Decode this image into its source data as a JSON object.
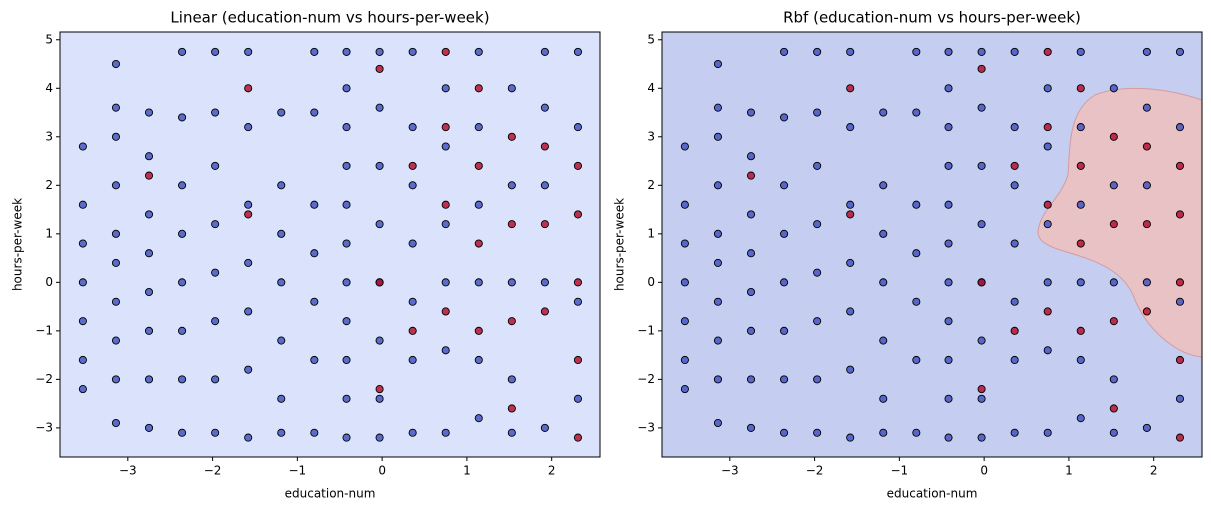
{
  "chart_data": [
    {
      "type": "scatter",
      "title": "Linear (education-num vs hours-per-week)",
      "x_label": "education-num",
      "y_label": "hours-per-week",
      "background": "#dae3fb",
      "xlim": [
        -3.8,
        2.57
      ],
      "ylim": [
        -3.6,
        5.16
      ],
      "xticks": [
        {
          "value": -3,
          "label": "−3"
        },
        {
          "value": -2,
          "label": "−2"
        },
        {
          "value": -1,
          "label": "−1"
        },
        0,
        1,
        2
      ],
      "yticks": [
        {
          "value": -3,
          "label": "−3"
        },
        {
          "value": -2,
          "label": "−2"
        },
        {
          "value": -1,
          "label": "−1"
        },
        0,
        1,
        2,
        3,
        4,
        5
      ],
      "series": [
        {
          "color": "#3b4cc0",
          "x": [
            -3.53,
            -3.53,
            -3.53,
            -3.53,
            -3.53,
            -3.53,
            -3.53,
            -3.14,
            -3.14,
            -3.14,
            -3.14,
            -3.14,
            -3.14,
            -3.14,
            -3.14,
            -3.14,
            -3.14,
            -2.75,
            -2.75,
            -2.75,
            -2.75,
            -2.75,
            -2.75,
            -2.75,
            -2.75,
            -2.36,
            -2.36,
            -2.36,
            -2.36,
            -2.36,
            -2.36,
            -2.36,
            -2.36,
            -1.97,
            -1.97,
            -1.97,
            -1.97,
            -1.97,
            -1.97,
            -1.97,
            -1.97,
            -1.58,
            -1.58,
            -1.58,
            -1.58,
            -1.58,
            -1.58,
            -1.58,
            -1.19,
            -1.19,
            -1.19,
            -1.19,
            -1.19,
            -1.19,
            -1.19,
            -0.8,
            -0.8,
            -0.8,
            -0.8,
            -0.8,
            -0.8,
            -0.8,
            -0.42,
            -0.42,
            -0.42,
            -0.42,
            -0.42,
            -0.42,
            -0.42,
            -0.42,
            -0.42,
            -0.42,
            -0.42,
            -0.03,
            -0.03,
            -0.03,
            -0.03,
            -0.03,
            -0.03,
            -0.03,
            -0.03,
            0.36,
            0.36,
            0.36,
            0.36,
            0.36,
            0.36,
            0.36,
            0.75,
            0.75,
            0.75,
            0.75,
            0.75,
            0.75,
            1.14,
            1.14,
            1.14,
            1.14,
            1.14,
            1.14,
            1.53,
            1.53,
            1.53,
            1.53,
            1.53,
            1.92,
            1.92,
            1.92,
            1.92,
            1.92,
            2.31,
            2.31,
            2.31,
            2.31
          ],
          "y": [
            2.8,
            1.6,
            0.8,
            0,
            -0.8,
            -1.6,
            -2.2,
            4.5,
            3.6,
            3.0,
            2.0,
            1.0,
            0.4,
            -0.4,
            -1.2,
            -2.0,
            -2.9,
            3.5,
            2.6,
            1.4,
            0.6,
            -0.2,
            -1.0,
            -2.0,
            -3.0,
            4.75,
            3.4,
            2.0,
            1.0,
            0.0,
            -1.0,
            -2.0,
            -3.1,
            4.75,
            3.5,
            2.4,
            1.2,
            0.2,
            -0.8,
            -2.0,
            -3.1,
            4.75,
            3.2,
            1.6,
            0.4,
            -0.6,
            -1.8,
            -3.2,
            3.5,
            2.0,
            1.0,
            0.0,
            -1.2,
            -2.4,
            -3.1,
            4.75,
            3.5,
            1.6,
            0.6,
            -0.4,
            -1.6,
            -3.1,
            4.75,
            4.0,
            3.2,
            2.4,
            1.6,
            0.8,
            0,
            -0.8,
            -1.6,
            -2.4,
            -3.2,
            4.75,
            3.6,
            2.4,
            1.2,
            0,
            -1.2,
            -2.4,
            -3.2,
            4.75,
            3.2,
            2.0,
            0.8,
            -0.4,
            -1.6,
            -3.1,
            4.0,
            2.8,
            1.2,
            0,
            -1.4,
            -3.1,
            4.75,
            3.2,
            1.6,
            0,
            -1.6,
            -2.8,
            4.0,
            2.0,
            0.0,
            -2.0,
            -3.1,
            4.75,
            3.6,
            2.0,
            0,
            -3.0,
            4.75,
            3.2,
            -0.4,
            -2.4
          ]
        },
        {
          "color": "#b40426",
          "x": [
            0.75,
            0.75,
            0.75,
            0.75,
            1.14,
            1.14,
            1.14,
            1.14,
            1.53,
            1.53,
            1.53,
            1.53,
            1.92,
            1.92,
            1.92,
            2.31,
            2.31,
            2.31,
            2.31,
            2.31,
            -0.03,
            -0.03,
            -0.03,
            -1.58,
            -1.58,
            -2.75,
            0.36,
            0.36
          ],
          "y": [
            4.75,
            3.2,
            1.6,
            -0.6,
            4.0,
            2.4,
            0.8,
            -1.0,
            3.0,
            1.2,
            -0.8,
            -2.6,
            2.8,
            1.2,
            -0.6,
            2.4,
            1.4,
            0,
            -1.6,
            -3.2,
            4.4,
            0,
            -2.2,
            4.0,
            1.4,
            2.2,
            2.4,
            -1.0
          ]
        }
      ]
    },
    {
      "type": "scatter",
      "title": "Rbf (education-num vs hours-per-week)",
      "x_label": "education-num",
      "y_label": "hours-per-week",
      "background": "#c5cef0",
      "xlim": [
        -3.8,
        2.57
      ],
      "ylim": [
        -3.6,
        5.16
      ],
      "xticks": [
        {
          "value": -3,
          "label": "−3"
        },
        {
          "value": -2,
          "label": "−2"
        },
        {
          "value": -1,
          "label": "−1"
        },
        0,
        1,
        2
      ],
      "yticks": [
        {
          "value": -3,
          "label": "−3"
        },
        {
          "value": -2,
          "label": "−2"
        },
        {
          "value": -1,
          "label": "−1"
        },
        0,
        1,
        2,
        3,
        4,
        5
      ],
      "series": [
        {
          "color": "#3b4cc0",
          "x": [
            -3.53,
            -3.53,
            -3.53,
            -3.53,
            -3.53,
            -3.53,
            -3.53,
            -3.14,
            -3.14,
            -3.14,
            -3.14,
            -3.14,
            -3.14,
            -3.14,
            -3.14,
            -3.14,
            -3.14,
            -2.75,
            -2.75,
            -2.75,
            -2.75,
            -2.75,
            -2.75,
            -2.75,
            -2.75,
            -2.36,
            -2.36,
            -2.36,
            -2.36,
            -2.36,
            -2.36,
            -2.36,
            -2.36,
            -1.97,
            -1.97,
            -1.97,
            -1.97,
            -1.97,
            -1.97,
            -1.97,
            -1.97,
            -1.58,
            -1.58,
            -1.58,
            -1.58,
            -1.58,
            -1.58,
            -1.58,
            -1.19,
            -1.19,
            -1.19,
            -1.19,
            -1.19,
            -1.19,
            -1.19,
            -0.8,
            -0.8,
            -0.8,
            -0.8,
            -0.8,
            -0.8,
            -0.8,
            -0.42,
            -0.42,
            -0.42,
            -0.42,
            -0.42,
            -0.42,
            -0.42,
            -0.42,
            -0.42,
            -0.42,
            -0.42,
            -0.03,
            -0.03,
            -0.03,
            -0.03,
            -0.03,
            -0.03,
            -0.03,
            -0.03,
            0.36,
            0.36,
            0.36,
            0.36,
            0.36,
            0.36,
            0.36,
            0.75,
            0.75,
            0.75,
            0.75,
            0.75,
            0.75,
            1.14,
            1.14,
            1.14,
            1.14,
            1.14,
            1.14,
            1.53,
            1.53,
            1.53,
            1.53,
            1.53,
            1.92,
            1.92,
            1.92,
            1.92,
            1.92,
            2.31,
            2.31,
            2.31,
            2.31
          ],
          "y": [
            2.8,
            1.6,
            0.8,
            0,
            -0.8,
            -1.6,
            -2.2,
            4.5,
            3.6,
            3.0,
            2.0,
            1.0,
            0.4,
            -0.4,
            -1.2,
            -2.0,
            -2.9,
            3.5,
            2.6,
            1.4,
            0.6,
            -0.2,
            -1.0,
            -2.0,
            -3.0,
            4.75,
            3.4,
            2.0,
            1.0,
            0.0,
            -1.0,
            -2.0,
            -3.1,
            4.75,
            3.5,
            2.4,
            1.2,
            0.2,
            -0.8,
            -2.0,
            -3.1,
            4.75,
            3.2,
            1.6,
            0.4,
            -0.6,
            -1.8,
            -3.2,
            3.5,
            2.0,
            1.0,
            0.0,
            -1.2,
            -2.4,
            -3.1,
            4.75,
            3.5,
            1.6,
            0.6,
            -0.4,
            -1.6,
            -3.1,
            4.75,
            4.0,
            3.2,
            2.4,
            1.6,
            0.8,
            0,
            -0.8,
            -1.6,
            -2.4,
            -3.2,
            4.75,
            3.6,
            2.4,
            1.2,
            0,
            -1.2,
            -2.4,
            -3.2,
            4.75,
            3.2,
            2.0,
            0.8,
            -0.4,
            -1.6,
            -3.1,
            4.0,
            2.8,
            1.2,
            0,
            -1.4,
            -3.1,
            4.75,
            3.2,
            1.6,
            0,
            -1.6,
            -2.8,
            4.0,
            2.0,
            0.0,
            -2.0,
            -3.1,
            4.75,
            3.6,
            2.0,
            0,
            -3.0,
            4.75,
            3.2,
            -0.4,
            -2.4
          ]
        },
        {
          "color": "#b40426",
          "x": [
            0.75,
            0.75,
            0.75,
            0.75,
            1.14,
            1.14,
            1.14,
            1.14,
            1.53,
            1.53,
            1.53,
            1.53,
            1.92,
            1.92,
            1.92,
            2.31,
            2.31,
            2.31,
            2.31,
            2.31,
            -0.03,
            -0.03,
            -0.03,
            -1.58,
            -1.58,
            -2.75,
            0.36,
            0.36
          ],
          "y": [
            4.75,
            3.2,
            1.6,
            -0.6,
            4.0,
            2.4,
            0.8,
            -1.0,
            3.0,
            1.2,
            -0.8,
            -2.6,
            2.8,
            1.2,
            -0.6,
            2.4,
            1.4,
            0,
            -1.6,
            -3.2,
            4.4,
            0,
            -2.2,
            4.0,
            1.4,
            2.2,
            2.4,
            -1.0
          ]
        }
      ]
    }
  ]
}
